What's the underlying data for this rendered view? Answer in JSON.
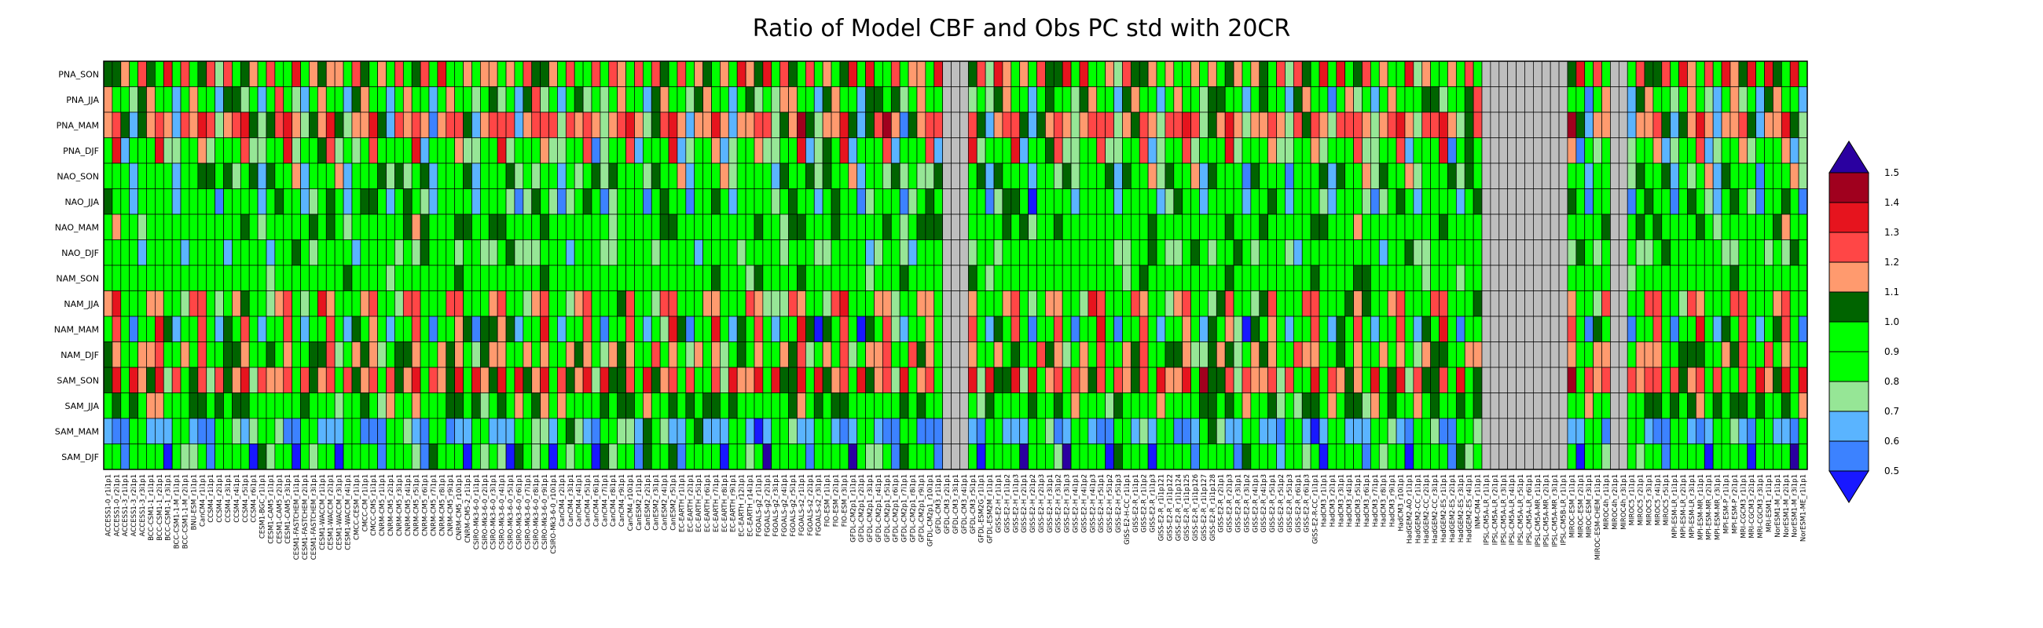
{
  "chart_data": {
    "type": "heatmap",
    "title": "Ratio of Model CBF and Obs PC std with 20CR",
    "rows": [
      "PNA_SON",
      "PNA_JJA",
      "PNA_MAM",
      "PNA_DJF",
      "NAO_SON",
      "NAO_JJA",
      "NAO_MAM",
      "NAO_DJF",
      "NAM_SON",
      "NAM_JJA",
      "NAM_MAM",
      "NAM_DJF",
      "SAM_SON",
      "SAM_JJA",
      "SAM_MAM",
      "SAM_DJF"
    ],
    "columns": [
      "ACCESS1-0_r1i1p1",
      "ACCESS1-0_r2i1p1",
      "ACCESS1-3_r1i1p1",
      "ACCESS1-3_r2i1p1",
      "ACCESS1-3_r3i1p1",
      "BCC-CSM1-1_r1i1p1",
      "BCC-CSM1-1_r2i1p1",
      "BCC-CSM1-1_r3i1p1",
      "BCC-CSM1-1-M_r1i1p1",
      "BCC-CSM1-1-M_r2i1p1",
      "BNU-ESM_r1i1p1",
      "CanCM4_r1i1p1",
      "CCSM4_r1i1p1",
      "CCSM4_r2i1p1",
      "CCSM4_r3i1p1",
      "CCSM4_r4i1p1",
      "CCSM4_r5i1p1",
      "CCSM4_r6i1p1",
      "CESM1-BGC_r1i1p1",
      "CESM1-CAM5_r1i1p1",
      "CESM1-CAM5_r2i1p1",
      "CESM1-CAM5_r3i1p1",
      "CESM1-FASTCHEM_r1i1p1",
      "CESM1-FASTCHEM_r2i1p1",
      "CESM1-FASTCHEM_r3i1p1",
      "CESM1-WACCM_r1i1p1",
      "CESM1-WACCM_r2i1p1",
      "CESM1-WACCM_r3i1p1",
      "CESM1-WACCM_r4i1p1",
      "CMCC-CESM_r1i1p1",
      "CMCC-CM_r1i1p1",
      "CMCC-CMS_r1i1p1",
      "CNRM-CM5_r1i1p1",
      "CNRM-CM5_r2i1p1",
      "CNRM-CM5_r3i1p1",
      "CNRM-CM5_r4i1p1",
      "CNRM-CM5_r5i1p1",
      "CNRM-CM5_r6i1p1",
      "CNRM-CM5_r7i1p1",
      "CNRM-CM5_r8i1p1",
      "CNRM-CM5_r9i1p1",
      "CNRM-CM5_r10i1p1",
      "CNRM-CM5-2_r1i1p1",
      "CSIRO-Mk3-6-0_r1i1p1",
      "CSIRO-Mk3-6-0_r2i1p1",
      "CSIRO-Mk3-6-0_r3i1p1",
      "CSIRO-Mk3-6-0_r4i1p1",
      "CSIRO-Mk3-6-0_r5i1p1",
      "CSIRO-Mk3-6-0_r6i1p1",
      "CSIRO-Mk3-6-0_r7i1p1",
      "CSIRO-Mk3-6-0_r8i1p1",
      "CSIRO-Mk3-6-0_r9i1p1",
      "CSIRO-Mk3-6-0_r10i1p1",
      "CanCM4_r2i1p1",
      "CanCM4_r3i1p1",
      "CanCM4_r4i1p1",
      "CanCM4_r5i1p1",
      "CanCM4_r6i1p1",
      "CanCM4_r7i1p1",
      "CanCM4_r8i1p1",
      "CanCM4_r9i1p1",
      "CanCM4_r10i1p1",
      "CanESM2_r1i1p1",
      "CanESM2_r2i1p1",
      "CanESM2_r3i1p1",
      "CanESM2_r4i1p1",
      "CanESM2_r5i1p1",
      "EC-EARTH_r1i1p1",
      "EC-EARTH_r2i1p1",
      "EC-EARTH_r5i1p1",
      "EC-EARTH_r6i1p1",
      "EC-EARTH_r7i1p1",
      "EC-EARTH_r8i1p1",
      "EC-EARTH_r9i1p1",
      "EC-EARTH_r12i1p1",
      "EC-EARTH_r14i1p1",
      "FGOALS-g2_r1i1p1",
      "FGOALS-g2_r2i1p1",
      "FGOALS-g2_r3i1p1",
      "FGOALS-g2_r4i1p1",
      "FGOALS-g2_r5i1p1",
      "FGOALS-s2_r1i1p1",
      "FGOALS-s2_r2i1p1",
      "FGOALS-s2_r3i1p1",
      "FIO-ESM_r1i1p1",
      "FIO-ESM_r2i1p1",
      "FIO-ESM_r3i1p1",
      "GFDL-CM2p1_r1i1p1",
      "GFDL-CM2p1_r2i1p1",
      "GFDL-CM2p1_r3i1p1",
      "GFDL-CM2p1_r4i1p1",
      "GFDL-CM2p1_r5i1p1",
      "GFDL-CM2p1_r6i1p1",
      "GFDL-CM2p1_r7i1p1",
      "GFDL-CM2p1_r8i1p1",
      "GFDL-CM2p1_r9i1p1",
      "GFDL-CM2p1_r10i1p1",
      "GFDL-CM3_r1i1p1",
      "GFDL-CM3_r2i1p1",
      "GFDL-CM3_r3i1p1",
      "GFDL-CM3_r4i1p1",
      "GFDL-CM3_r5i1p1",
      "GFDL-ESM2G_r1i1p1",
      "GFDL-ESM2M_r1i1p1",
      "GISS-E2-H_r1i1p1",
      "GISS-E2-H_r1i1p2",
      "GISS-E2-H_r1i1p3",
      "GISS-E2-H_r2i1p1",
      "GISS-E2-H_r2i1p2",
      "GISS-E2-H_r2i1p3",
      "GISS-E2-H_r3i1p1",
      "GISS-E2-H_r3i1p2",
      "GISS-E2-H_r3i1p3",
      "GISS-E2-H_r4i1p1",
      "GISS-E2-H_r4i1p2",
      "GISS-E2-H_r4i1p3",
      "GISS-E2-H_r5i1p1",
      "GISS-E2-H_r5i1p2",
      "GISS-E2-H_r5i1p3",
      "GISS-E2-H-CC_r1i1p1",
      "GISS-E2-R_r1i1p1",
      "GISS-E2-R_r1i1p2",
      "GISS-E2-R_r1i1p3",
      "GISS-E2-R_r1i1p121",
      "GISS-E2-R_r1i1p122",
      "GISS-E2-R_r1i1p124",
      "GISS-E2-R_r1i1p125",
      "GISS-E2-R_r1i1p126",
      "GISS-E2-R_r1i1p127",
      "GISS-E2-R_r1i1p128",
      "GISS-E2-R_r2i1p1",
      "GISS-E2-R_r2i1p3",
      "GISS-E2-R_r3i1p1",
      "GISS-E2-R_r3i1p2",
      "GISS-E2-R_r4i1p1",
      "GISS-E2-R_r4i1p3",
      "GISS-E2-R_r5i1p1",
      "GISS-E2-R_r5i1p2",
      "GISS-E2-R_r5i1p3",
      "GISS-E2-R_r6i1p1",
      "GISS-E2-R_r6i1p3",
      "GISS-E2-R-CC_r1i1p1",
      "HadCM3_r1i1p1",
      "HadCM3_r2i1p1",
      "HadCM3_r3i1p1",
      "HadCM3_r4i1p1",
      "HadCM3_r5i1p1",
      "HadCM3_r6i1p1",
      "HadCM3_r7i1p1",
      "HadCM3_r8i1p1",
      "HadCM3_r9i1p1",
      "HadCM3_r10i1p1",
      "HadGEM2-AO_r1i1p1",
      "HadGEM2-CC_r1i1p1",
      "HadGEM2-CC_r2i1p1",
      "HadGEM2-CC_r3i1p1",
      "HadGEM2-ES_r1i1p1",
      "HadGEM2-ES_r2i1p1",
      "HadGEM2-ES_r3i1p1",
      "HadGEM2-ES_r4i1p1",
      "INM-CM4_r1i1p1",
      "IPSL-CM5A-LR_r1i1p1",
      "IPSL-CM5A-LR_r2i1p1",
      "IPSL-CM5A-LR_r3i1p1",
      "IPSL-CM5A-LR_r4i1p1",
      "IPSL-CM5A-LR_r5i1p1",
      "IPSL-CM5A-LR_r6i1p1",
      "IPSL-CM5A-MR_r1i1p1",
      "IPSL-CM5A-MR_r2i1p1",
      "IPSL-CM5A-MR_r3i1p1",
      "IPSL-CM5B-LR_r1i1p1",
      "MIROC-ESM_r1i1p1",
      "MIROC-ESM_r2i1p1",
      "MIROC-ESM_r3i1p1",
      "MIROC-ESM-CHEM_r1i1p1",
      "MIROC4h_r1i1p1",
      "MIROC4h_r2i1p1",
      "MIROC4h_r3i1p1",
      "MIROC5_r1i1p1",
      "MIROC5_r2i1p1",
      "MIROC5_r3i1p1",
      "MIROC5_r4i1p1",
      "MIROC5_r5i1p1",
      "MPI-ESM-LR_r1i1p1",
      "MPI-ESM-LR_r2i1p1",
      "MPI-ESM-LR_r3i1p1",
      "MPI-ESM-MR_r1i1p1",
      "MPI-ESM-MR_r2i1p1",
      "MPI-ESM-MR_r3i1p1",
      "MPI-ESM-P_r1i1p1",
      "MPI-ESM-P_r2i1p1",
      "MRI-CGCM3_r1i1p1",
      "MRI-CGCM3_r2i1p1",
      "MRI-CGCM3_r3i1p1",
      "MRI-ESM1_r1i1p1",
      "NorESM1-M_r1i1p1",
      "NorESM1-M_r2i1p1",
      "NorESM1-M_r3i1p1",
      "NorESM1-ME_r1i1p1"
    ],
    "colorbar": {
      "ticks": [
        "0.5",
        "0.6",
        "0.7",
        "0.8",
        "0.9",
        "1.0",
        "1.1",
        "1.2",
        "1.3",
        "1.4",
        "1.5"
      ],
      "colors": [
        "#1818ff",
        "#3c82ff",
        "#5ab4ff",
        "#96e696",
        "#00ff00",
        "#00ff00",
        "#006400",
        "#ff9a6e",
        "#ff4646",
        "#e6141e",
        "#a0001e",
        "#2a00a0"
      ],
      "below_color": "#2a00a0",
      "above_color": "#a0001e"
    },
    "missing_color": "#bebebe",
    "missing_column_ranges": [
      [
        98,
        100
      ],
      [
        161,
        170
      ],
      [
        176,
        177
      ]
    ],
    "column_tints": [
      [
        1.12,
        1.25,
        1.3,
        1.02,
        0.98,
        1.05,
        1.05,
        0.98,
        1.0,
        1.3,
        1.0,
        1.15,
        1.2,
        1.1,
        0.75,
        0.96
      ],
      [
        1.1,
        0.96,
        1.42,
        1.35,
        1.0,
        1.05,
        1.12,
        0.98,
        1.05,
        1.3,
        1.35,
        1.25,
        1.4,
        1.15,
        0.7,
        1.0
      ],
      [
        1.35,
        1.0,
        1.25,
        0.8,
        1.15,
        0.98,
        1.05,
        1.05,
        1.0,
        1.0,
        1.0,
        0.95,
        0.95,
        0.95,
        0.7,
        0.6
      ],
      [
        0.98,
        0.8,
        0.8,
        0.92,
        0.8,
        0.7,
        0.98,
        0.98,
        1.0,
        0.97,
        0.7,
        0.98,
        1.4,
        1.15,
        1.0,
        1.05
      ],
      [
        1.35,
        1.1,
        1.25,
        1.0,
        1.05,
        0.97,
        1.0,
        0.85,
        0.98,
        0.96,
        1.05,
        1.25,
        1.15,
        1.0,
        1.02,
        0.95
      ]
    ]
  }
}
